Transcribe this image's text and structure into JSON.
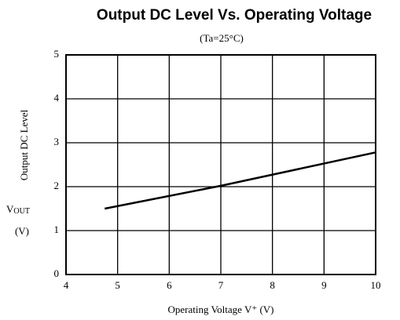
{
  "chart_data": {
    "type": "line",
    "title": "Output DC Level Vs. Operating Voltage",
    "subtitle": "(Ta=25°C)",
    "y_label": "Output DC Level",
    "y_symbol": "V",
    "y_symbol_subscript": "OUT",
    "y_unit": "(V)",
    "x_label": "Operating Voltage V⁺ (V)",
    "xlim": [
      4,
      10
    ],
    "xticks": [
      4,
      5,
      6,
      7,
      8,
      9,
      10
    ],
    "ylim": [
      0,
      5
    ],
    "yticks": [
      0,
      1,
      2,
      3,
      4,
      5
    ],
    "grid": true,
    "series": [
      {
        "color": "#000000",
        "x": [
          4.75,
          7,
          10
        ],
        "values": [
          1.5,
          2.02,
          2.78
        ]
      }
    ]
  }
}
